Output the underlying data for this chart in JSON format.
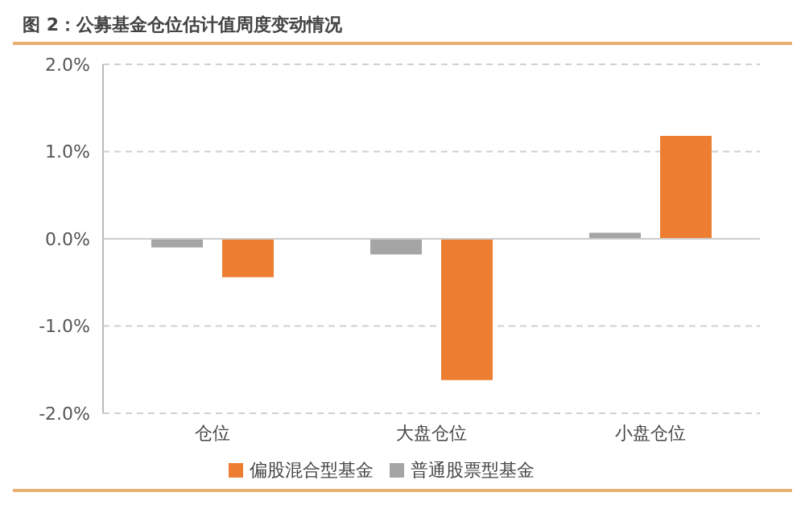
{
  "chart_data": {
    "type": "bar",
    "title": "图 2：公募基金仓位估计值周度变动情况",
    "categories": [
      "仓位",
      "大盘仓位",
      "小盘仓位"
    ],
    "series": [
      {
        "name": "普通股票型基金",
        "color": "#a5a5a5",
        "values": [
          -0.1,
          -0.18,
          0.07
        ]
      },
      {
        "name": "偏股混合型基金",
        "color": "#ed7d31",
        "values": [
          -0.44,
          -1.62,
          1.18
        ]
      }
    ],
    "ylim": [
      -2,
      2
    ],
    "yticks": [
      {
        "value": -2,
        "label": "-2.0%"
      },
      {
        "value": -1,
        "label": "-1.0%"
      },
      {
        "value": 0,
        "label": "0.0%"
      },
      {
        "value": 1,
        "label": "1.0%"
      },
      {
        "value": 2,
        "label": "2.0%"
      }
    ],
    "grid": "y",
    "legend": "bottom"
  }
}
